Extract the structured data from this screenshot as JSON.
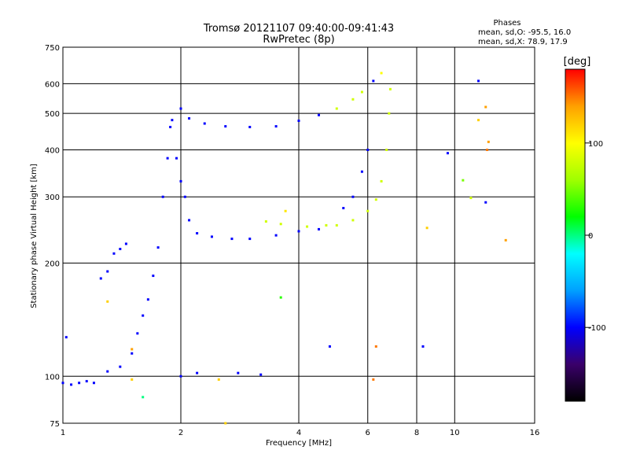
{
  "chart_data": {
    "type": "scatter",
    "title": "Tromsø 20121107 09:40:00-09:41:43",
    "subtitle": "RwPretec (8p)",
    "xlabel": "Frequency [MHz]",
    "ylabel": "Stationary phase Virtual Height [km]",
    "x_scale": "log2",
    "y_scale": "log",
    "xlim": [
      1,
      16
    ],
    "ylim": [
      75,
      750
    ],
    "x_ticks": [
      1,
      2,
      4,
      6,
      8,
      10,
      16
    ],
    "x_tick_labels": [
      "1",
      "2",
      "4",
      "6",
      "8",
      "10",
      "16"
    ],
    "y_ticks": [
      75,
      100,
      200,
      300,
      400,
      500,
      600,
      750
    ],
    "y_tick_labels": [
      "75",
      "100",
      "200",
      "300",
      "400",
      "500",
      "600",
      "750"
    ],
    "grid": true,
    "stats": {
      "heading": "Phases",
      "line1": "mean, sd,O: -95.5, 16.0",
      "line2": "mean, sd,X:  78.9, 17.9"
    },
    "colorbar": {
      "label": "[deg]",
      "min": -180,
      "max": 180,
      "tick_values": [
        100,
        0,
        -100
      ],
      "tick_labels": [
        "100",
        "0",
        "-100"
      ],
      "colors": [
        "#000000",
        "#3a006a",
        "#0000ff",
        "#00a0ff",
        "#00ffff",
        "#00ff00",
        "#a0ff00",
        "#ffff00",
        "#ffa000",
        "#ff0000"
      ]
    },
    "series": [
      {
        "points": [
          [
            1.0,
            96,
            -100
          ],
          [
            1.05,
            95,
            -100
          ],
          [
            1.1,
            96,
            -100
          ],
          [
            1.15,
            97,
            -100
          ],
          [
            1.2,
            96,
            -100
          ],
          [
            1.02,
            127,
            -100
          ],
          [
            1.25,
            182,
            -100
          ],
          [
            1.3,
            190,
            -100
          ],
          [
            1.35,
            212,
            -100
          ],
          [
            1.4,
            218,
            -100
          ],
          [
            1.45,
            225,
            -100
          ],
          [
            1.3,
            103,
            -100
          ],
          [
            1.4,
            106,
            -100
          ],
          [
            1.5,
            115,
            -100
          ],
          [
            1.55,
            130,
            -100
          ],
          [
            1.6,
            145,
            -100
          ],
          [
            1.65,
            160,
            -100
          ],
          [
            1.7,
            185,
            -100
          ],
          [
            1.75,
            220,
            -100
          ],
          [
            1.8,
            300,
            -100
          ],
          [
            1.85,
            380,
            -100
          ],
          [
            1.88,
            460,
            -100
          ],
          [
            1.9,
            480,
            -100
          ],
          [
            1.95,
            380,
            -100
          ],
          [
            2.0,
            330,
            -100
          ],
          [
            2.05,
            300,
            -100
          ],
          [
            2.1,
            260,
            -100
          ],
          [
            2.2,
            240,
            -100
          ],
          [
            2.4,
            235,
            -100
          ],
          [
            2.7,
            232,
            -100
          ],
          [
            3.0,
            232,
            -100
          ],
          [
            3.5,
            237,
            -100
          ],
          [
            4.0,
            243,
            -100
          ],
          [
            4.5,
            246,
            -100
          ],
          [
            5.0,
            252,
            80
          ],
          [
            5.5,
            260,
            80
          ],
          [
            6.0,
            275,
            80
          ],
          [
            6.3,
            295,
            80
          ],
          [
            6.5,
            330,
            80
          ],
          [
            6.7,
            400,
            80
          ],
          [
            6.8,
            500,
            80
          ],
          [
            6.85,
            580,
            80
          ],
          [
            3.3,
            258,
            80
          ],
          [
            3.6,
            254,
            80
          ],
          [
            4.2,
            250,
            80
          ],
          [
            4.7,
            252,
            80
          ],
          [
            2.0,
            515,
            -100
          ],
          [
            2.1,
            485,
            -100
          ],
          [
            2.3,
            470,
            -100
          ],
          [
            2.6,
            462,
            -100
          ],
          [
            3.0,
            460,
            -100
          ],
          [
            3.5,
            462,
            -100
          ],
          [
            4.0,
            478,
            -100
          ],
          [
            4.5,
            495,
            -100
          ],
          [
            5.0,
            515,
            80
          ],
          [
            5.5,
            545,
            80
          ],
          [
            5.8,
            570,
            80
          ],
          [
            6.2,
            610,
            -100
          ],
          [
            6.5,
            640,
            100
          ],
          [
            5.2,
            280,
            -100
          ],
          [
            5.5,
            300,
            -100
          ],
          [
            5.8,
            350,
            -100
          ],
          [
            6.0,
            400,
            -100
          ],
          [
            2.0,
            100,
            -100
          ],
          [
            2.2,
            102,
            -100
          ],
          [
            2.8,
            102,
            -100
          ],
          [
            3.2,
            101,
            -100
          ],
          [
            2.5,
            98,
            120
          ],
          [
            2.6,
            75,
            120
          ],
          [
            1.6,
            88,
            0
          ],
          [
            1.5,
            98,
            120
          ],
          [
            3.6,
            162,
            30
          ],
          [
            3.7,
            275,
            110
          ],
          [
            4.8,
            120,
            -100
          ],
          [
            6.3,
            120,
            150
          ],
          [
            8.3,
            120,
            -100
          ],
          [
            6.2,
            98,
            150
          ],
          [
            8.5,
            248,
            120
          ],
          [
            9.6,
            392,
            -100
          ],
          [
            10.5,
            332,
            50
          ],
          [
            11.0,
            298,
            80
          ],
          [
            11.5,
            610,
            -100
          ],
          [
            12.0,
            520,
            140
          ],
          [
            11.5,
            480,
            120
          ],
          [
            12.2,
            420,
            140
          ],
          [
            12.1,
            400,
            150
          ],
          [
            12.0,
            290,
            -100
          ],
          [
            13.5,
            230,
            140
          ],
          [
            1.3,
            158,
            120
          ],
          [
            1.5,
            118,
            140
          ]
        ]
      }
    ]
  }
}
